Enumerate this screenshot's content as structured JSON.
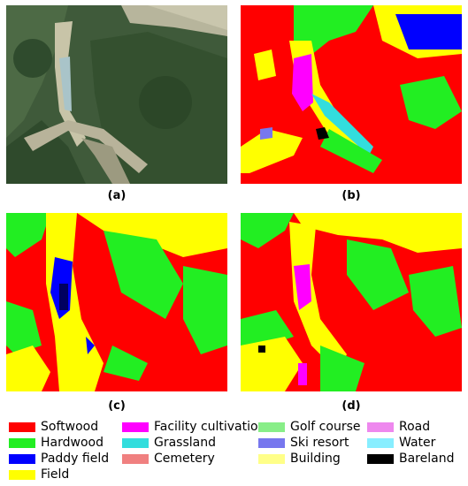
{
  "captions": {
    "a": "(a)",
    "b": "(b)",
    "c": "(c)",
    "d": "(d)"
  },
  "legend": [
    {
      "label": "Softwood",
      "color": "#ff0000"
    },
    {
      "label": "Hardwood",
      "color": "#22ee22"
    },
    {
      "label": "Paddy field",
      "color": "#0000ff"
    },
    {
      "label": "Field",
      "color": "#ffff00"
    },
    {
      "label": "Facility cultivation",
      "color": "#ff00ff"
    },
    {
      "label": "Grassland",
      "color": "#33dddd"
    },
    {
      "label": "Cemetery",
      "color": "#f08080"
    },
    {
      "label": "Golf course",
      "color": "#88ee88"
    },
    {
      "label": "Ski resort",
      "color": "#7777ee"
    },
    {
      "label": "Building",
      "color": "#ffff88"
    },
    {
      "label": "Road",
      "color": "#ee88ee"
    },
    {
      "label": "Water",
      "color": "#88eeff"
    },
    {
      "label": "Bareland",
      "color": "#000000"
    }
  ]
}
